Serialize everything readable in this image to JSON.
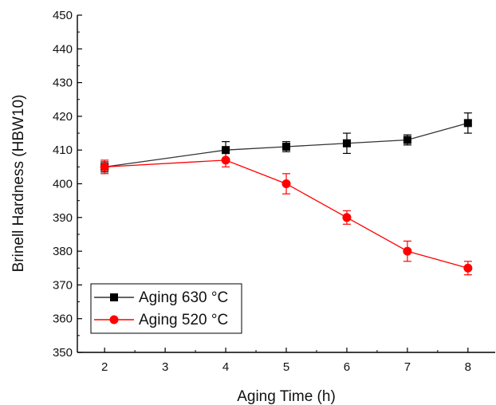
{
  "chart_data": {
    "type": "line",
    "xlabel": "Aging Time (h)",
    "ylabel": "Brinell Hardness (HBW10)",
    "xlim": [
      1.55,
      8.45
    ],
    "ylim": [
      350,
      450
    ],
    "xticks": [
      2,
      3,
      4,
      5,
      6,
      7,
      8
    ],
    "yticks": [
      350,
      360,
      370,
      380,
      390,
      400,
      410,
      420,
      430,
      440,
      450
    ],
    "grid": false,
    "legend_position": "bottom-left",
    "series": [
      {
        "name": "Aging 630 °C",
        "color": "#000000",
        "line_color": "#333333",
        "marker": "square",
        "x": [
          2,
          4,
          5,
          6,
          7,
          8
        ],
        "y": [
          405,
          410,
          411,
          412,
          413,
          418
        ],
        "error": [
          1.5,
          2.5,
          1.5,
          3,
          1.5,
          3
        ]
      },
      {
        "name": "Aging 520 °C",
        "color": "#ff0000",
        "line_color": "#ff0000",
        "marker": "circle",
        "x": [
          2,
          4,
          5,
          6,
          7,
          8
        ],
        "y": [
          405,
          407,
          400,
          390,
          380,
          375
        ],
        "error": [
          2,
          2,
          3,
          2,
          3,
          2
        ]
      }
    ]
  }
}
